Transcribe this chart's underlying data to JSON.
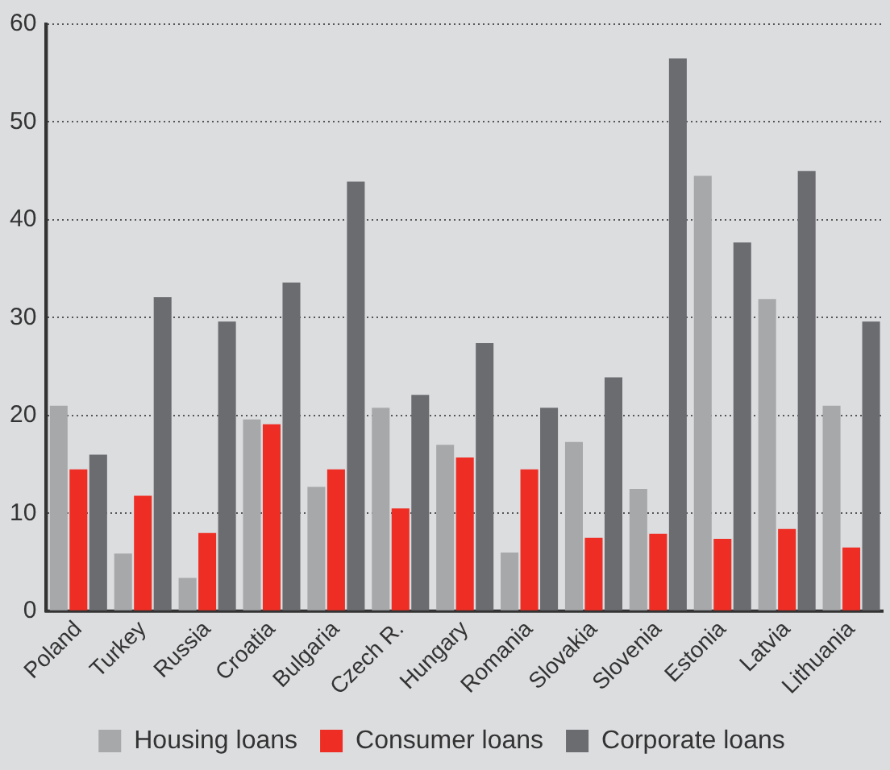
{
  "chart_data": {
    "type": "bar",
    "categories": [
      "Poland",
      "Turkey",
      "Russia",
      "Croatia",
      "Bulgaria",
      "Czech R.",
      "Hungary",
      "Romania",
      "Slovakia",
      "Slovenia",
      "Estonia",
      "Latvia",
      "Lithuania"
    ],
    "series": [
      {
        "name": "Housing loans",
        "color": "#a7a8aa",
        "values": [
          21.0,
          5.9,
          3.4,
          19.6,
          12.7,
          20.8,
          17.0,
          6.0,
          17.3,
          12.5,
          44.5,
          31.9,
          21.0
        ]
      },
      {
        "name": "Consumer loans",
        "color": "#ee2e24",
        "values": [
          14.5,
          11.8,
          8.0,
          19.1,
          14.5,
          10.5,
          15.7,
          14.5,
          7.5,
          7.9,
          7.4,
          8.4,
          6.5
        ]
      },
      {
        "name": "Corporate loans",
        "color": "#6b6c70",
        "values": [
          16.0,
          32.1,
          29.6,
          33.6,
          43.9,
          22.1,
          27.4,
          20.8,
          23.9,
          56.5,
          37.7,
          45.0,
          29.6
        ]
      }
    ],
    "ylim": [
      0,
      60
    ],
    "yticks": [
      0,
      10,
      20,
      30,
      40,
      50,
      60
    ],
    "grid": "y",
    "legend": "bottom"
  }
}
